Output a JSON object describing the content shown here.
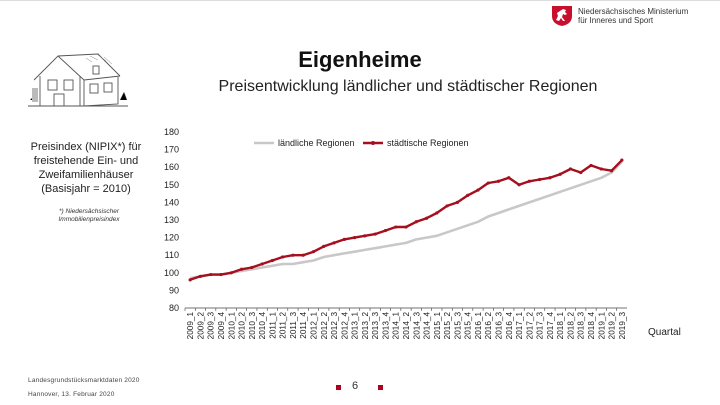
{
  "header": {
    "ministry_line1": "Niedersächsisches Ministerium",
    "ministry_line2": "für Inneres und Sport",
    "crest_icon": "saxony-horse-crest-icon"
  },
  "slide": {
    "title": "Eigenheime",
    "subtitle": "Preisentwicklung ländlicher und städtischer Regionen",
    "description": "Preisindex (NIPIX*) für freistehende Ein- und Zweifamilienhäuser (Basisjahr = 2010)",
    "footnote": "*) Niedersächsischer Immobilienpreisindex",
    "footer_source": "Landesgrundstücksmarktdaten 2020",
    "footer_date": "Hannover,  13. Februar 2020",
    "page_number": "6",
    "accent_color": "#b00020"
  },
  "chart_data": {
    "type": "line",
    "xlabel": "Quartal",
    "ylabel": "",
    "ylim": [
      80,
      180
    ],
    "yticks": [
      80,
      90,
      100,
      110,
      120,
      130,
      140,
      150,
      160,
      170,
      180
    ],
    "grid": false,
    "legend_position": "top",
    "categories": [
      "2009_1",
      "2009_2",
      "2009_3",
      "2009_4",
      "2010_1",
      "2010_2",
      "2010_3",
      "2010_4",
      "2011_1",
      "2011_2",
      "2011_3",
      "2011_4",
      "2012_1",
      "2012_2",
      "2012_3",
      "2012_4",
      "2013_1",
      "2013_2",
      "2013_3",
      "2013_4",
      "2014_1",
      "2014_2",
      "2014_3",
      "2014_4",
      "2015_1",
      "2015_2",
      "2015_3",
      "2015_4",
      "2016_1",
      "2016_2",
      "2016_3",
      "2016_4",
      "2017_1",
      "2017_2",
      "2017_3",
      "2017_4",
      "2018_1",
      "2018_2",
      "2018_3",
      "2018_4",
      "2019_1",
      "2019_2",
      "2019_3"
    ],
    "series": [
      {
        "name": "ländliche Regionen",
        "color": "#c8c8c8",
        "values": [
          97,
          98,
          99,
          99,
          100,
          101,
          102,
          103,
          104,
          105,
          105,
          106,
          107,
          109,
          110,
          111,
          112,
          113,
          114,
          115,
          116,
          117,
          119,
          120,
          121,
          123,
          125,
          127,
          129,
          132,
          134,
          136,
          138,
          140,
          142,
          144,
          146,
          148,
          150,
          152,
          154,
          157,
          163
        ]
      },
      {
        "name": "städtische Regionen",
        "color": "#a50f1e",
        "values": [
          96,
          98,
          99,
          99,
          100,
          102,
          103,
          105,
          107,
          109,
          110,
          110,
          112,
          115,
          117,
          119,
          120,
          121,
          122,
          124,
          126,
          126,
          129,
          131,
          134,
          138,
          140,
          144,
          147,
          151,
          152,
          154,
          150,
          152,
          153,
          154,
          156,
          159,
          157,
          161,
          159,
          158,
          164
        ]
      }
    ]
  }
}
